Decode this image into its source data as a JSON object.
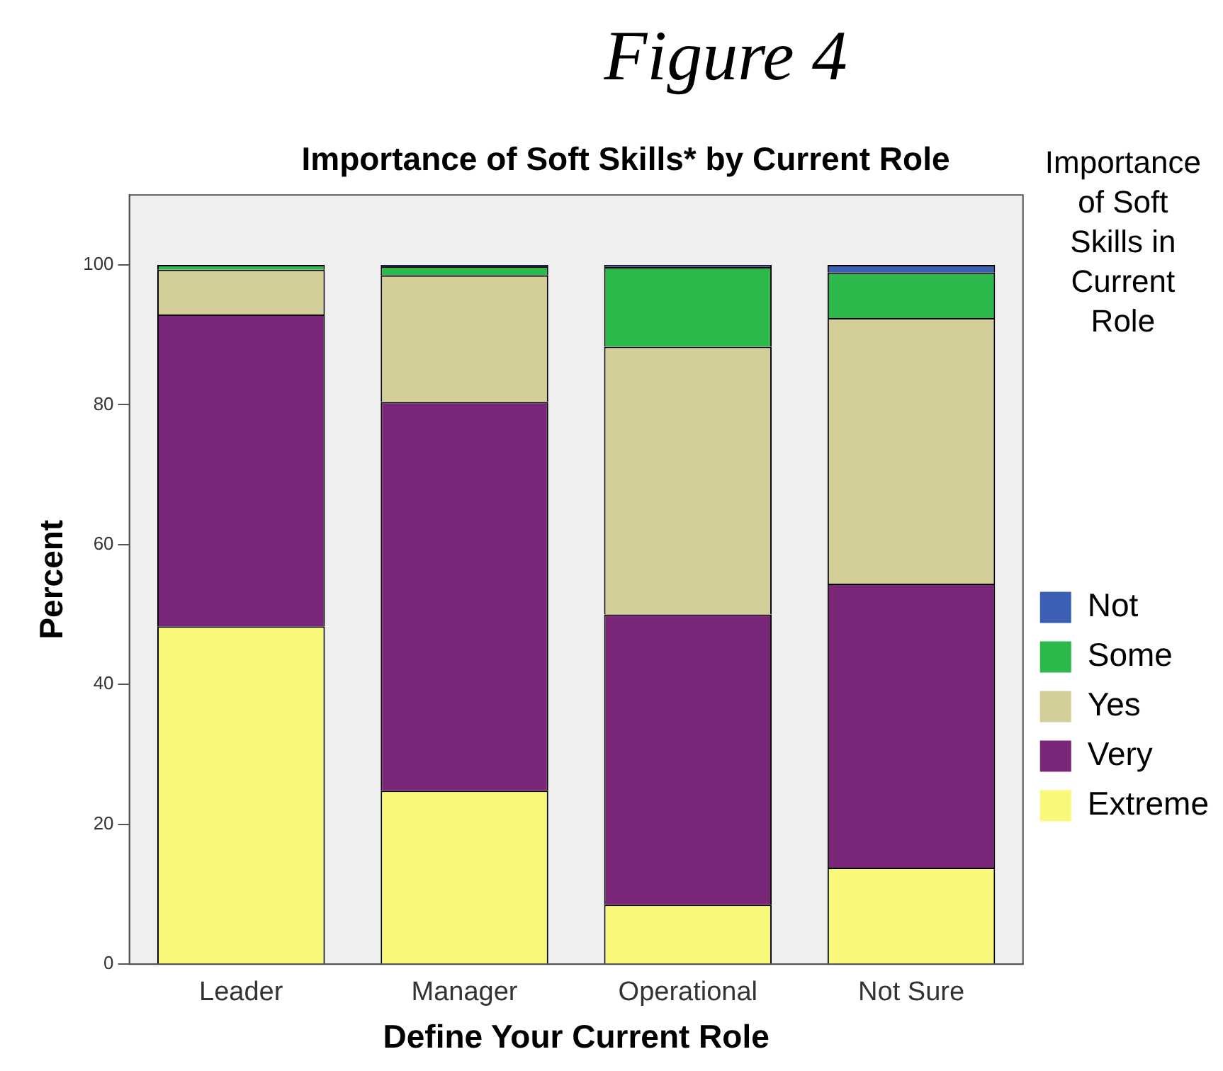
{
  "chart_data": {
    "type": "bar",
    "title": "Importance of Soft Skills* by Current Role",
    "annotations": [
      "Figure 4"
    ],
    "xlabel": "Define Your Current Role",
    "ylabel": "Percent",
    "legend_title": "Importance of Soft Skills in Current Role",
    "categories": [
      "Leader",
      "Manager",
      "Operational",
      "Not Sure"
    ],
    "stacked": true,
    "ylim": [
      0,
      110
    ],
    "yticks": [
      0,
      20,
      40,
      60,
      80,
      100
    ],
    "grid": false,
    "legend": "right",
    "series": [
      {
        "name": "Extreme",
        "color": "#f8f87a",
        "values": [
          48.3,
          24.8,
          8.5,
          13.8
        ]
      },
      {
        "name": "Very",
        "color": "#7b2779",
        "values": [
          44.6,
          55.6,
          41.5,
          40.6
        ]
      },
      {
        "name": "Yes",
        "color": "#d4cf98",
        "values": [
          6.4,
          18.1,
          38.3,
          38.0
        ]
      },
      {
        "name": "Some",
        "color": "#2db84b",
        "values": [
          0.7,
          1.3,
          11.4,
          6.5
        ]
      },
      {
        "name": "Not",
        "color": "#3a5fb5",
        "values": [
          0,
          0.2,
          0.3,
          1.1
        ]
      }
    ]
  }
}
